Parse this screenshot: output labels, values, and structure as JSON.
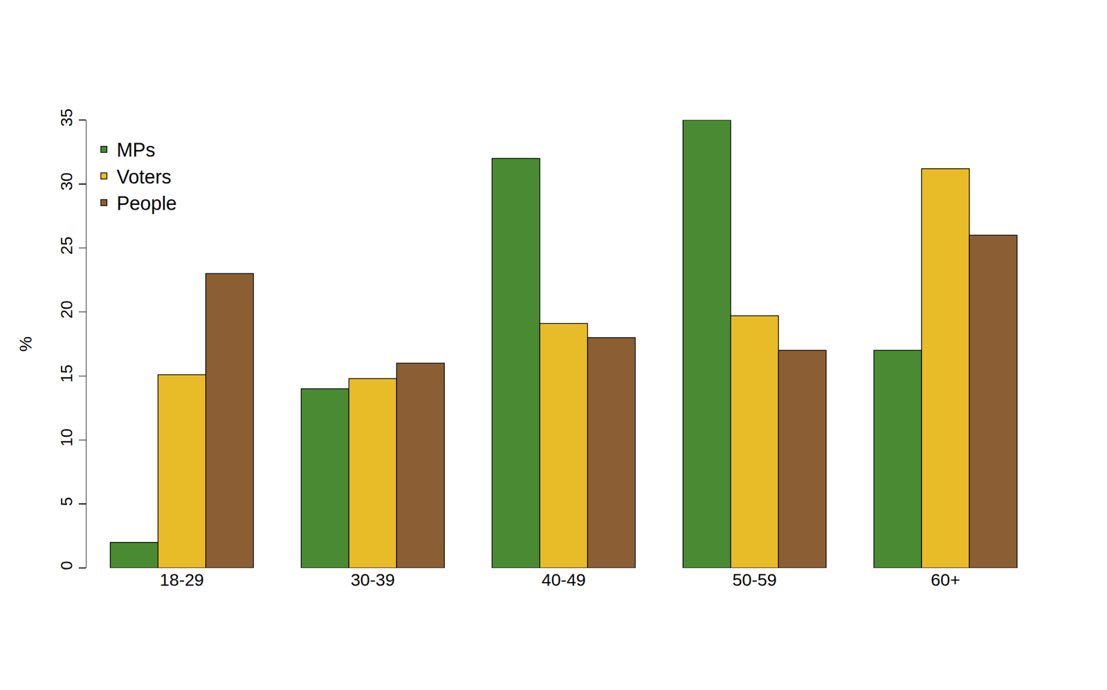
{
  "chart_data": {
    "type": "bar",
    "categories": [
      "18-29",
      "30-39",
      "40-49",
      "50-59",
      "60+"
    ],
    "series": [
      {
        "name": "MPs",
        "color": "#4a8a33",
        "values": [
          2,
          14,
          32,
          35,
          17
        ]
      },
      {
        "name": "Voters",
        "color": "#e8bb28",
        "values": [
          15.1,
          14.8,
          19.1,
          19.7,
          31.2
        ]
      },
      {
        "name": "People",
        "color": "#8b5e34",
        "values": [
          23,
          16,
          18,
          17,
          26
        ]
      }
    ],
    "y_label": "%",
    "ylim": [
      0,
      35
    ],
    "yticks": [
      0,
      5,
      10,
      15,
      20,
      25,
      30,
      35
    ],
    "grid": false,
    "legend": "top left"
  }
}
